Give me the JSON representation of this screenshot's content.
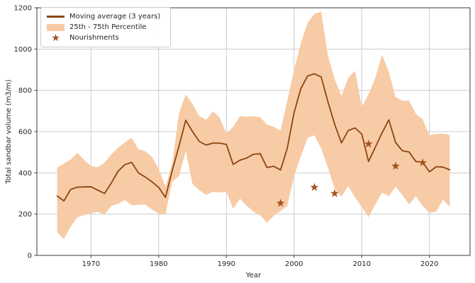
{
  "figure": {
    "background": "#ffffff",
    "line_color": "#8b4513",
    "band_color": "#f7cba5",
    "star_color": "#a5511f",
    "grid_color": "#cccccc",
    "spine_color": "#3a3a3a",
    "text_color": "#262626"
  },
  "legend": {
    "items": [
      {
        "swatch": "line",
        "label": "Moving average (3 years)"
      },
      {
        "swatch": "band",
        "label": "25th - 75th Percentile"
      },
      {
        "swatch": "star",
        "label": "Nourishments"
      }
    ]
  },
  "chart_data": {
    "type": "line",
    "title": "",
    "xlabel": "Year",
    "ylabel": "Total sandbar volume (m3/m)",
    "xlim": [
      1962,
      2026
    ],
    "ylim": [
      0,
      1200
    ],
    "xticks": [
      1970,
      1980,
      1990,
      2000,
      2010,
      2020
    ],
    "yticks": [
      0,
      200,
      400,
      600,
      800,
      1000,
      1200
    ],
    "grid": true,
    "legend_position": "upper-left",
    "x": [
      1965,
      1966,
      1967,
      1968,
      1969,
      1970,
      1971,
      1972,
      1973,
      1974,
      1975,
      1976,
      1977,
      1978,
      1979,
      1980,
      1981,
      1982,
      1983,
      1984,
      1985,
      1986,
      1987,
      1988,
      1989,
      1990,
      1991,
      1992,
      1993,
      1994,
      1995,
      1996,
      1997,
      1998,
      1999,
      2000,
      2001,
      2002,
      2003,
      2004,
      2005,
      2006,
      2007,
      2008,
      2009,
      2010,
      2011,
      2012,
      2013,
      2014,
      2015,
      2016,
      2017,
      2018,
      2019,
      2020,
      2021,
      2022,
      2023
    ],
    "series": [
      {
        "name": "Moving average (3 years)",
        "type": "line",
        "values": [
          288,
          264,
          320,
          331,
          332,
          333,
          316,
          300,
          351,
          408,
          440,
          451,
          400,
          380,
          357,
          330,
          281,
          411,
          530,
          655,
          600,
          552,
          535,
          544,
          544,
          538,
          441,
          461,
          472,
          490,
          493,
          426,
          432,
          414,
          519,
          692,
          808,
          870,
          880,
          865,
          745,
          635,
          545,
          605,
          618,
          588,
          455,
          524,
          594,
          657,
          547,
          507,
          501,
          455,
          452,
          405,
          430,
          428,
          415
        ]
      },
      {
        "name": "25th Percentile",
        "type": "band-lower",
        "values": [
          113,
          80,
          140,
          185,
          196,
          204,
          212,
          198,
          240,
          250,
          268,
          242,
          245,
          247,
          223,
          202,
          200,
          358,
          385,
          505,
          345,
          316,
          293,
          308,
          304,
          310,
          225,
          275,
          241,
          212,
          194,
          158,
          192,
          215,
          240,
          385,
          480,
          571,
          582,
          519,
          426,
          322,
          285,
          335,
          281,
          235,
          185,
          247,
          304,
          287,
          333,
          293,
          247,
          287,
          240,
          206,
          212,
          270,
          235
        ]
      },
      {
        "name": "75th Percentile",
        "type": "band-upper",
        "values": [
          425,
          445,
          465,
          497,
          462,
          433,
          428,
          450,
          490,
          522,
          548,
          570,
          515,
          505,
          478,
          420,
          333,
          445,
          690,
          780,
          733,
          675,
          657,
          698,
          669,
          590,
          623,
          675,
          672,
          675,
          670,
          634,
          623,
          605,
          750,
          900,
          1028,
          1127,
          1170,
          1182,
          970,
          854,
          773,
          860,
          895,
          721,
          779,
          860,
          973,
          889,
          767,
          750,
          750,
          686,
          660,
          582,
          588,
          590,
          584
        ]
      }
    ],
    "nourishments": {
      "name": "Nourishments",
      "type": "scatter",
      "points": [
        [
          1998,
          253
        ],
        [
          2003,
          330
        ],
        [
          2006,
          300
        ],
        [
          2011,
          540
        ],
        [
          2015,
          433
        ],
        [
          2019,
          449
        ]
      ]
    }
  }
}
